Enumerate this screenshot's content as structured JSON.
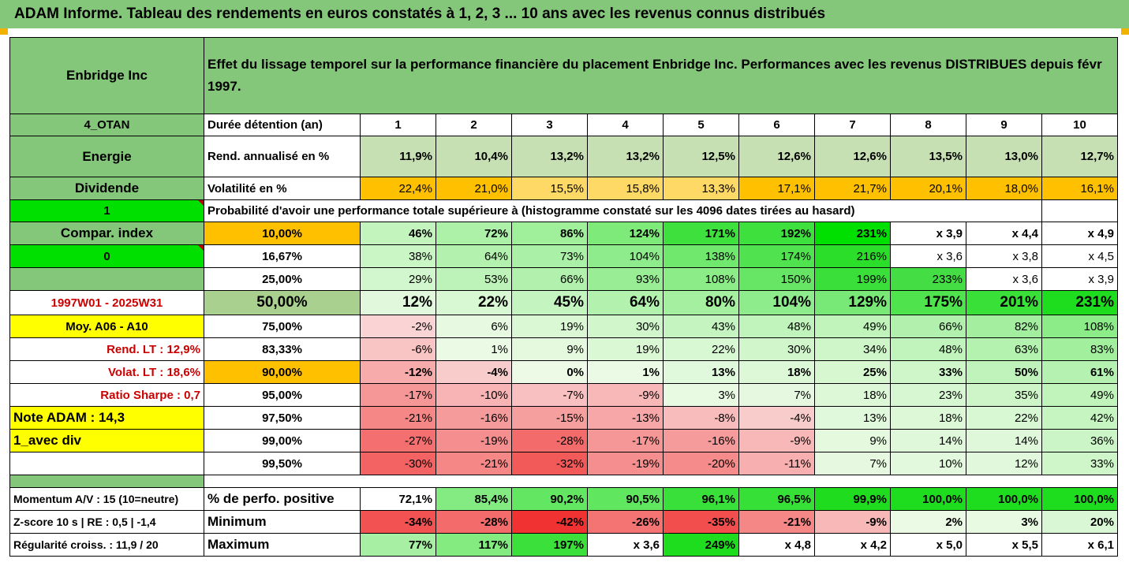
{
  "title": "ADAM Informe. Tableau des rendements en euros constatés à 1, 2, 3 ... 10 ans avec les revenus connus distribués",
  "header": {
    "company": "Enbridge Inc",
    "description": "Effet du lissage temporel sur la performance financière du placement Enbridge Inc. Performances avec les revenus DISTRIBUES depuis févr 1997."
  },
  "info": {
    "code": "4_OTAN",
    "sector": "Energie",
    "dividend_label": "Dividende",
    "flag1": "1",
    "compar_label": "Compar. index",
    "flag2": "0",
    "period": "1997W01 - 2025W31",
    "moy": "Moy. A06 - A10",
    "rend_lt": "Rend. LT :   12,9%",
    "volat_lt": "Volat. LT :   18,6%",
    "sharpe": "Ratio Sharpe :    0,7",
    "note": "Note ADAM : 14,3",
    "avec_div": "1_avec div"
  },
  "labels": {
    "duree": "Durée détention (an)",
    "rend": "Rend. annualisé en %",
    "volat": "Volatilité en %",
    "proba": "Probabilité d'avoir une performance totale supérieure à (histogramme constaté sur les 4096 dates tirées au hasard)"
  },
  "years": [
    "1",
    "2",
    "3",
    "4",
    "5",
    "6",
    "7",
    "8",
    "9",
    "10"
  ],
  "rend": [
    "11,9%",
    "10,4%",
    "13,2%",
    "13,2%",
    "12,5%",
    "12,6%",
    "12,6%",
    "13,5%",
    "13,0%",
    "12,7%"
  ],
  "volat": [
    "22,4%",
    "21,0%",
    "15,5%",
    "15,8%",
    "13,3%",
    "17,1%",
    "21,7%",
    "20,1%",
    "18,0%",
    "16,1%"
  ],
  "quantiles": [
    {
      "label": "10,00%",
      "values": [
        "46%",
        "72%",
        "86%",
        "124%",
        "171%",
        "192%",
        "231%",
        "x 3,9",
        "x 4,4",
        "x 4,9"
      ]
    },
    {
      "label": "16,67%",
      "values": [
        "38%",
        "64%",
        "73%",
        "104%",
        "138%",
        "174%",
        "216%",
        "x 3,6",
        "x 3,8",
        "x 4,5"
      ]
    },
    {
      "label": "25,00%",
      "values": [
        "29%",
        "53%",
        "66%",
        "93%",
        "108%",
        "150%",
        "199%",
        "233%",
        "x 3,6",
        "x 3,9"
      ]
    },
    {
      "label": "50,00%",
      "values": [
        "12%",
        "22%",
        "45%",
        "64%",
        "80%",
        "104%",
        "129%",
        "175%",
        "201%",
        "231%"
      ]
    },
    {
      "label": "75,00%",
      "values": [
        "-2%",
        "6%",
        "19%",
        "30%",
        "43%",
        "48%",
        "49%",
        "66%",
        "82%",
        "108%"
      ]
    },
    {
      "label": "83,33%",
      "values": [
        "-6%",
        "1%",
        "9%",
        "19%",
        "22%",
        "30%",
        "34%",
        "48%",
        "63%",
        "83%"
      ]
    },
    {
      "label": "90,00%",
      "values": [
        "-12%",
        "-4%",
        "0%",
        "1%",
        "13%",
        "18%",
        "25%",
        "33%",
        "50%",
        "61%"
      ]
    },
    {
      "label": "95,00%",
      "values": [
        "-17%",
        "-10%",
        "-7%",
        "-9%",
        "3%",
        "7%",
        "18%",
        "23%",
        "35%",
        "49%"
      ]
    },
    {
      "label": "97,50%",
      "values": [
        "-21%",
        "-16%",
        "-15%",
        "-13%",
        "-8%",
        "-4%",
        "13%",
        "18%",
        "22%",
        "42%"
      ]
    },
    {
      "label": "99,00%",
      "values": [
        "-27%",
        "-19%",
        "-28%",
        "-17%",
        "-16%",
        "-9%",
        "9%",
        "14%",
        "14%",
        "36%"
      ]
    },
    {
      "label": "99,50%",
      "values": [
        "-30%",
        "-21%",
        "-32%",
        "-19%",
        "-20%",
        "-11%",
        "7%",
        "10%",
        "12%",
        "33%"
      ]
    }
  ],
  "bottom": [
    {
      "left": "Momentum A/V : 15 (10=neutre)",
      "label": "% de perfo. positive",
      "values": [
        "72,1%",
        "85,4%",
        "90,2%",
        "90,5%",
        "96,1%",
        "96,5%",
        "99,9%",
        "100,0%",
        "100,0%",
        "100,0%"
      ]
    },
    {
      "left": "Z-score 10 s  |  RE : 0,5  |  -1,4",
      "label": "Minimum",
      "values": [
        "-34%",
        "-28%",
        "-42%",
        "-26%",
        "-35%",
        "-21%",
        "-9%",
        "2%",
        "3%",
        "20%"
      ]
    },
    {
      "left": "Régularité croiss. : 11,9 / 20",
      "label": "Maximum",
      "values": [
        "77%",
        "117%",
        "197%",
        "x 3,6",
        "249%",
        "x 4,8",
        "x 4,2",
        "x 5,0",
        "x 5,5",
        "x 6,1"
      ]
    }
  ],
  "colors": {
    "header_green": "#84c77a",
    "yellow": "#ffff00",
    "orange": "#ffc000",
    "bright_green": "#00e000",
    "period_red": "#cc0000"
  }
}
